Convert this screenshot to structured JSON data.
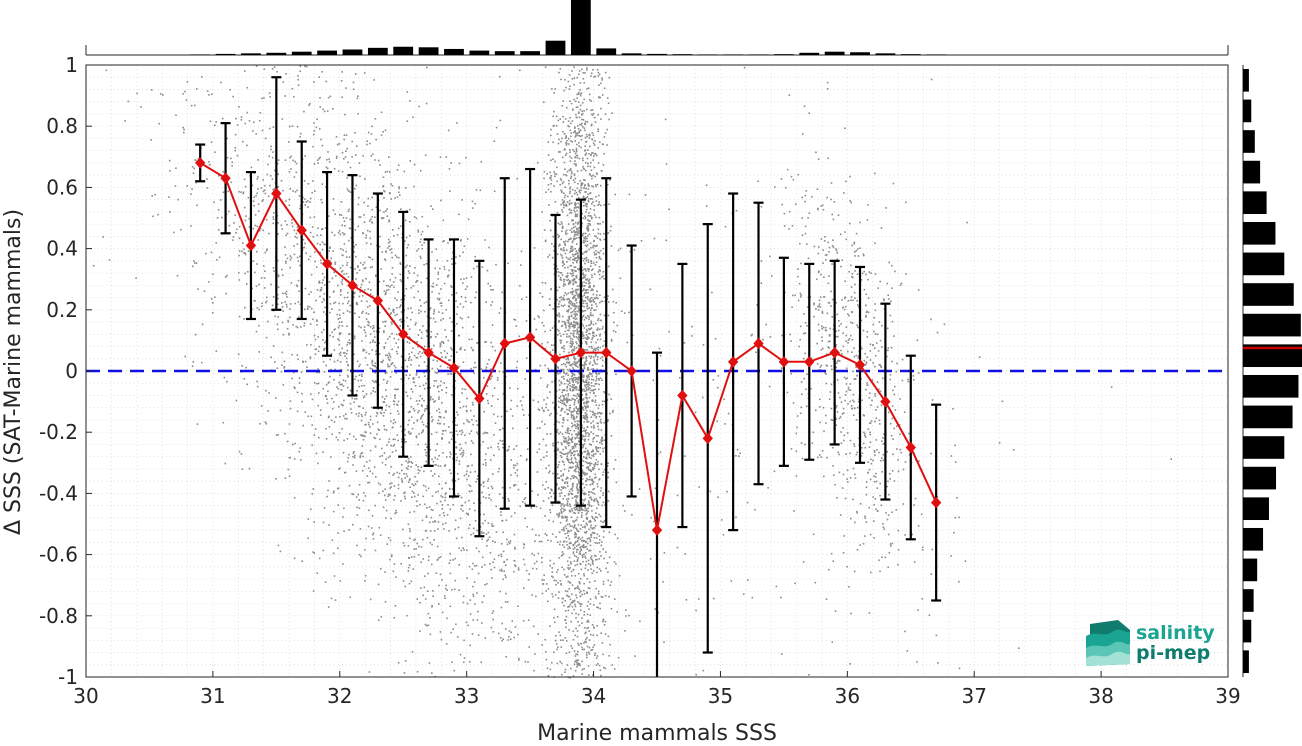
{
  "chart_data": {
    "type": "scatter",
    "xlabel": "Marine mammals SSS",
    "ylabel": "Δ SSS (SAT-Marine mammals)",
    "xlim": [
      30,
      39
    ],
    "ylim": [
      -1,
      1
    ],
    "x_ticks": [
      30,
      31,
      32,
      33,
      34,
      35,
      36,
      37,
      38,
      39
    ],
    "x_tick_labels": [
      "30",
      "31",
      "32",
      "33",
      "34",
      "35",
      "36",
      "37",
      "38",
      "39"
    ],
    "y_ticks": [
      -1,
      -0.8,
      -0.6,
      -0.4,
      -0.2,
      0,
      0.2,
      0.4,
      0.6,
      0.8,
      1
    ],
    "y_tick_labels": [
      "-1",
      "-0.8",
      "-0.6",
      "-0.4",
      "-0.2",
      "0",
      "0.2",
      "0.4",
      "0.6",
      "0.8",
      "1"
    ],
    "grid": true,
    "zero_line": 0,
    "colors": {
      "scatter": "#8c8c8c",
      "mean_line": "#e01010",
      "error_bars": "#000000",
      "zero_line": "#1010e0",
      "histogram": "#000000",
      "median_marker": "#cc0000",
      "logo": "#1aa593"
    },
    "binned_mean": {
      "x": [
        30.9,
        31.1,
        31.3,
        31.5,
        31.7,
        31.9,
        32.1,
        32.3,
        32.5,
        32.7,
        32.9,
        33.1,
        33.3,
        33.5,
        33.7,
        33.9,
        34.1,
        34.3,
        34.5,
        34.7,
        34.9,
        35.1,
        35.3,
        35.5,
        35.7,
        35.9,
        36.1,
        36.3,
        36.5,
        36.7
      ],
      "mean": [
        0.68,
        0.63,
        0.41,
        0.58,
        0.46,
        0.35,
        0.28,
        0.23,
        0.12,
        0.06,
        0.01,
        -0.09,
        0.09,
        0.11,
        0.04,
        0.06,
        0.06,
        0.0,
        -0.52,
        -0.08,
        -0.22,
        0.03,
        0.09,
        0.03,
        0.03,
        0.06,
        0.02,
        -0.1,
        -0.25,
        -0.43
      ],
      "std": [
        0.06,
        0.18,
        0.24,
        0.38,
        0.29,
        0.3,
        0.36,
        0.35,
        0.4,
        0.37,
        0.42,
        0.45,
        0.54,
        0.55,
        0.47,
        0.5,
        0.57,
        0.41,
        0.58,
        0.43,
        0.7,
        0.55,
        0.46,
        0.34,
        0.32,
        0.3,
        0.32,
        0.32,
        0.3,
        0.32
      ]
    },
    "top_histogram": {
      "bin_centers": [
        30.9,
        31.1,
        31.3,
        31.5,
        31.7,
        31.9,
        32.1,
        32.3,
        32.5,
        32.7,
        32.9,
        33.1,
        33.3,
        33.5,
        33.7,
        33.9,
        34.1,
        34.3,
        34.5,
        34.7,
        34.9,
        35.1,
        35.3,
        35.5,
        35.7,
        35.9,
        36.1,
        36.3,
        36.5,
        36.7
      ],
      "relative_counts": [
        0.01,
        0.02,
        0.03,
        0.04,
        0.06,
        0.08,
        0.1,
        0.13,
        0.15,
        0.14,
        0.11,
        0.08,
        0.07,
        0.07,
        0.26,
        1.0,
        0.12,
        0.03,
        0.02,
        0.015,
        0.01,
        0.01,
        0.01,
        0.015,
        0.04,
        0.06,
        0.05,
        0.03,
        0.015,
        0.01
      ]
    },
    "right_histogram": {
      "bin_centers": [
        0.95,
        0.85,
        0.75,
        0.65,
        0.55,
        0.45,
        0.35,
        0.25,
        0.15,
        0.05,
        -0.05,
        -0.15,
        -0.25,
        -0.35,
        -0.45,
        -0.55,
        -0.65,
        -0.75,
        -0.85,
        -0.95
      ],
      "relative_counts": [
        0.1,
        0.14,
        0.2,
        0.29,
        0.4,
        0.55,
        0.7,
        0.86,
        0.98,
        1.0,
        0.94,
        0.84,
        0.7,
        0.56,
        0.44,
        0.34,
        0.24,
        0.18,
        0.14,
        0.1
      ],
      "median": 0.075
    },
    "scatter_clusters": [
      {
        "x_center": 32.4,
        "x_spread": 0.75,
        "y_slope": -0.48,
        "y_spread": 0.38,
        "count": 3000
      },
      {
        "x_center": 33.88,
        "x_spread": 0.11,
        "y_slope": 0.0,
        "y_spread": 0.55,
        "count": 3200
      },
      {
        "x_center": 36.05,
        "x_spread": 0.25,
        "y_slope": -0.55,
        "y_spread": 0.28,
        "count": 700
      },
      {
        "x_center": 34.3,
        "x_spread": 1.5,
        "y_slope": -0.15,
        "y_spread": 0.6,
        "count": 400
      }
    ]
  },
  "logo": {
    "line1": "salinity",
    "line2": "pi-mep",
    "icon": "wave-layers-icon"
  }
}
